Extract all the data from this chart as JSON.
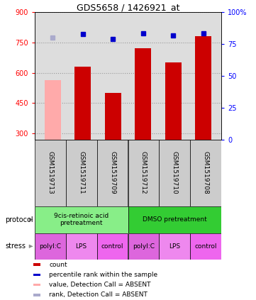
{
  "title": "GDS5658 / 1426921_at",
  "samples": [
    "GSM1519713",
    "GSM1519711",
    "GSM1519709",
    "GSM1519712",
    "GSM1519710",
    "GSM1519708"
  ],
  "bar_values": [
    null,
    630,
    500,
    720,
    650,
    780
  ],
  "bar_absent_values": [
    565,
    null,
    null,
    null,
    null,
    null
  ],
  "rank_values": [
    null,
    790,
    765,
    793,
    785,
    793
  ],
  "rank_absent_values": [
    775,
    null,
    null,
    null,
    null,
    null
  ],
  "ylim_left": [
    270,
    900
  ],
  "ylim_right": [
    0,
    100
  ],
  "yticks_left": [
    300,
    450,
    600,
    750,
    900
  ],
  "yticks_right": [
    0,
    25,
    50,
    75,
    100
  ],
  "bar_color": "#cc0000",
  "bar_absent_color": "#ffaaaa",
  "rank_color": "#0000cc",
  "rank_absent_color": "#aaaacc",
  "protocol_label1": "9cis-retinoic acid\npretreatment",
  "protocol_label2": "DMSO pretreatment",
  "protocol_color1": "#88ee88",
  "protocol_color2": "#33cc33",
  "stress_labels": [
    "polyI:C",
    "LPS",
    "control",
    "polyI:C",
    "LPS",
    "control"
  ],
  "stress_colors": [
    "#dd66dd",
    "#ee88ee",
    "#ee66ee",
    "#dd66dd",
    "#ee88ee",
    "#ee66ee"
  ],
  "sample_bg_color": "#cccccc",
  "plot_bg_color": "#dddddd",
  "grid_color": "#999999",
  "legend_items": [
    [
      "#cc0000",
      "count"
    ],
    [
      "#0000cc",
      "percentile rank within the sample"
    ],
    [
      "#ffaaaa",
      "value, Detection Call = ABSENT"
    ],
    [
      "#aaaacc",
      "rank, Detection Call = ABSENT"
    ]
  ]
}
